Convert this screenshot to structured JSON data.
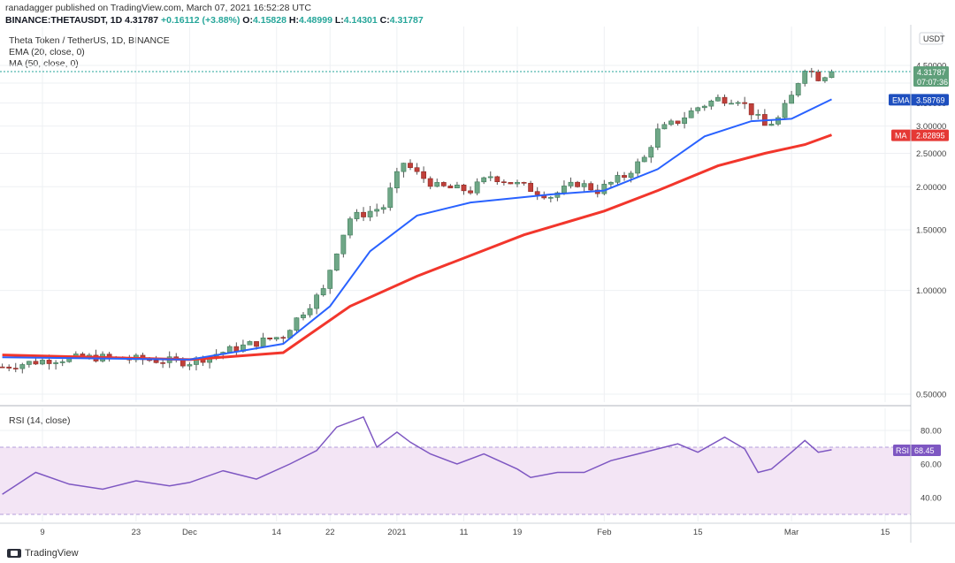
{
  "header": {
    "line1": "ranadagger published on TradingView.com, March 07, 2021 16:52:28 UTC",
    "symbol": "BINANCE:THETAUSDT, 1D",
    "price": "4.31787",
    "change": "+0.16112 (+3.88%)",
    "o_label": "O:",
    "o": "4.15828",
    "h_label": "H:",
    "h": "4.48999",
    "l_label": "L:",
    "l": "4.14301",
    "c_label": "C:",
    "c": "4.31787"
  },
  "main_pane": {
    "title": "Theta Token / TetherUS, 1D, BINANCE",
    "ema_label": "EMA (20, close, 0)",
    "ma_label": "MA (50, close, 0)",
    "currency": "USDT",
    "price_tag": "4.31787",
    "countdown": "07:07:36",
    "ema_tag_name": "EMA",
    "ema_tag_value": "3.58769",
    "ma_tag_name": "MA",
    "ma_tag_value": "2.82895"
  },
  "rsi_pane": {
    "title": "RSI (14, close)",
    "tag_name": "RSI",
    "tag_value": "68.45"
  },
  "footer": {
    "brand": "TradingView"
  },
  "colors": {
    "up": "#26a69a",
    "up_fill": "#6fa787",
    "down": "#c0403a",
    "ema": "#2962ff",
    "ma": "#f2362c",
    "rsi": "#7e57c2",
    "rsi_band": "#f3e5f5"
  },
  "chart_data": [
    {
      "type": "candlestick",
      "title": "Theta Token / TetherUS, 1D, BINANCE",
      "y_ticks": [
        "4.50000",
        "4.00000",
        "3.50000",
        "3.00000",
        "2.50000",
        "2.00000",
        "1.50000",
        "1.00000",
        "0.50000"
      ],
      "ylim": [
        0.4,
        5.2
      ],
      "x_ticks": [
        "9",
        "23",
        "Dec",
        "14",
        "22",
        "2021",
        "11",
        "19",
        "Feb",
        "15",
        "Mar",
        "15"
      ],
      "x_tick_dates": [
        "2020-11-09",
        "2020-11-23",
        "2020-12-01",
        "2020-12-14",
        "2020-12-22",
        "2021-01-01",
        "2021-01-11",
        "2021-01-19",
        "2021-02-01",
        "2021-02-15",
        "2021-03-01",
        "2021-03-15"
      ],
      "series": [
        {
          "name": "Theta Token / TetherUS",
          "close_points": [
            [
              "2020-11-03",
              0.6
            ],
            [
              "2020-11-10",
              0.63
            ],
            [
              "2020-11-17",
              0.64
            ],
            [
              "2020-11-24",
              0.63
            ],
            [
              "2020-12-01",
              0.62
            ],
            [
              "2020-12-08",
              0.68
            ],
            [
              "2020-12-15",
              0.74
            ],
            [
              "2020-12-21",
              1.0
            ],
            [
              "2020-12-25",
              1.62
            ],
            [
              "2020-12-30",
              1.75
            ],
            [
              "2021-01-02",
              2.35
            ],
            [
              "2021-01-04",
              2.18
            ],
            [
              "2021-01-07",
              2.0
            ],
            [
              "2021-01-12",
              1.95
            ],
            [
              "2021-01-15",
              2.15
            ],
            [
              "2021-01-20",
              2.0
            ],
            [
              "2021-01-24",
              1.88
            ],
            [
              "2021-01-28",
              2.05
            ],
            [
              "2021-01-31",
              1.95
            ],
            [
              "2021-02-04",
              2.15
            ],
            [
              "2021-02-07",
              2.42
            ],
            [
              "2021-02-09",
              2.9
            ],
            [
              "2021-02-12",
              3.1
            ],
            [
              "2021-02-15",
              3.4
            ],
            [
              "2021-02-18",
              3.6
            ],
            [
              "2021-02-21",
              3.6
            ],
            [
              "2021-02-23",
              3.3
            ],
            [
              "2021-02-25",
              3.0
            ],
            [
              "2021-02-27",
              3.15
            ],
            [
              "2021-03-01",
              3.65
            ],
            [
              "2021-03-03",
              4.45
            ],
            [
              "2021-03-05",
              4.16
            ],
            [
              "2021-03-07",
              4.31787
            ]
          ]
        }
      ],
      "ema20_points": [
        [
          "2020-11-03",
          0.64
        ],
        [
          "2020-12-01",
          0.63
        ],
        [
          "2020-12-15",
          0.7
        ],
        [
          "2020-12-22",
          0.9
        ],
        [
          "2020-12-28",
          1.3
        ],
        [
          "2021-01-04",
          1.65
        ],
        [
          "2021-01-12",
          1.8
        ],
        [
          "2021-01-24",
          1.9
        ],
        [
          "2021-02-01",
          1.95
        ],
        [
          "2021-02-09",
          2.25
        ],
        [
          "2021-02-16",
          2.8
        ],
        [
          "2021-02-23",
          3.1
        ],
        [
          "2021-03-01",
          3.15
        ],
        [
          "2021-03-07",
          3.58769
        ]
      ],
      "ma50_points": [
        [
          "2020-11-03",
          0.65
        ],
        [
          "2020-12-01",
          0.63
        ],
        [
          "2020-12-15",
          0.66
        ],
        [
          "2020-12-25",
          0.9
        ],
        [
          "2021-01-04",
          1.1
        ],
        [
          "2021-01-20",
          1.45
        ],
        [
          "2021-02-01",
          1.7
        ],
        [
          "2021-02-09",
          1.95
        ],
        [
          "2021-02-18",
          2.3
        ],
        [
          "2021-02-25",
          2.5
        ],
        [
          "2021-03-03",
          2.65
        ],
        [
          "2021-03-07",
          2.82895
        ]
      ]
    },
    {
      "type": "line",
      "title": "RSI (14, close)",
      "y_ticks": [
        "80.00",
        "60.00",
        "40.00"
      ],
      "ylim": [
        28,
        93
      ],
      "band": [
        30,
        70
      ],
      "x_ticks": [
        "9",
        "23",
        "Dec",
        "14",
        "22",
        "2021",
        "11",
        "19",
        "Feb",
        "15",
        "Mar",
        "15"
      ],
      "series": [
        {
          "name": "RSI (14, close)",
          "points": [
            [
              "2020-11-03",
              42
            ],
            [
              "2020-11-08",
              55
            ],
            [
              "2020-11-13",
              48
            ],
            [
              "2020-11-18",
              45
            ],
            [
              "2020-11-23",
              50
            ],
            [
              "2020-11-28",
              47
            ],
            [
              "2020-12-01",
              49
            ],
            [
              "2020-12-06",
              56
            ],
            [
              "2020-12-11",
              51
            ],
            [
              "2020-12-16",
              60
            ],
            [
              "2020-12-20",
              68
            ],
            [
              "2020-12-23",
              82
            ],
            [
              "2020-12-27",
              88
            ],
            [
              "2020-12-29",
              70
            ],
            [
              "2021-01-01",
              79
            ],
            [
              "2021-01-03",
              73
            ],
            [
              "2021-01-06",
              66
            ],
            [
              "2021-01-10",
              60
            ],
            [
              "2021-01-14",
              66
            ],
            [
              "2021-01-19",
              57
            ],
            [
              "2021-01-21",
              52
            ],
            [
              "2021-01-25",
              55
            ],
            [
              "2021-01-29",
              55
            ],
            [
              "2021-02-02",
              62
            ],
            [
              "2021-02-06",
              66
            ],
            [
              "2021-02-09",
              69
            ],
            [
              "2021-02-12",
              72
            ],
            [
              "2021-02-15",
              67
            ],
            [
              "2021-02-19",
              76
            ],
            [
              "2021-02-22",
              69
            ],
            [
              "2021-02-24",
              55
            ],
            [
              "2021-02-26",
              57
            ],
            [
              "2021-03-01",
              67
            ],
            [
              "2021-03-03",
              74
            ],
            [
              "2021-03-05",
              67
            ],
            [
              "2021-03-07",
              68.45
            ]
          ]
        }
      ]
    }
  ]
}
